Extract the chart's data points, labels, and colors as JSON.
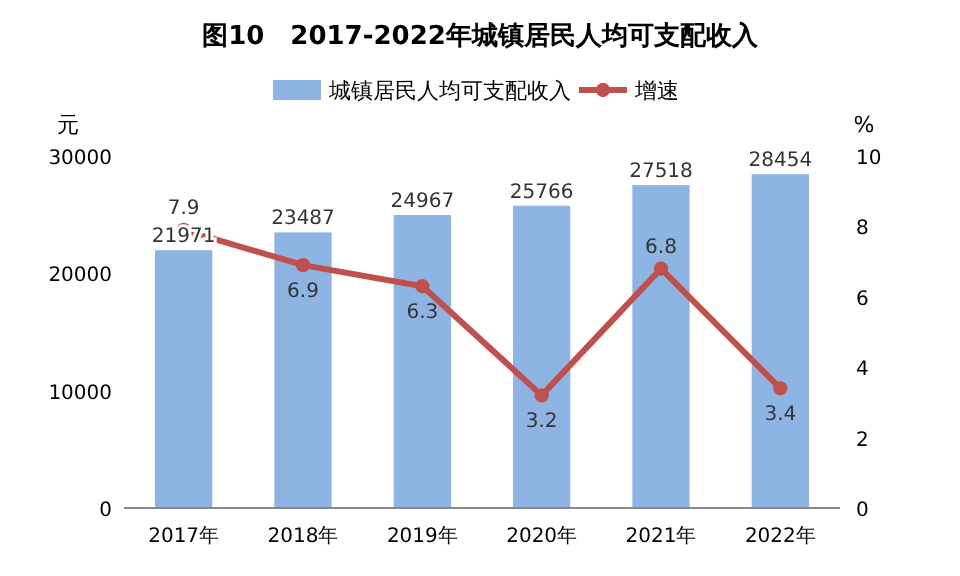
{
  "chart_data": {
    "type": "bar",
    "title": "图10　2017-2022年城镇居民人均可支配收入",
    "ylabel": "元",
    "y2label": "%",
    "categories": [
      "2017年",
      "2018年",
      "2019年",
      "2020年",
      "2021年",
      "2022年"
    ],
    "series": [
      {
        "name": "城镇居民人均可支配收入",
        "color": "#8eb4e3",
        "values": [
          21971,
          23487,
          24967,
          25766,
          27518,
          28454
        ]
      },
      {
        "name": "增速",
        "type": "line",
        "axis": "y2",
        "color": "#c0504d",
        "values": [
          7.9,
          6.9,
          6.3,
          3.2,
          6.8,
          3.4
        ]
      }
    ],
    "ylim": [
      0,
      30000
    ],
    "yticks": [
      0,
      10000,
      20000,
      30000
    ],
    "y2lim": [
      0,
      10
    ],
    "y2ticks": [
      0,
      2,
      4,
      6,
      8,
      10
    ],
    "data_labels": true,
    "legend": "top",
    "marker": "circle",
    "grid": false
  }
}
